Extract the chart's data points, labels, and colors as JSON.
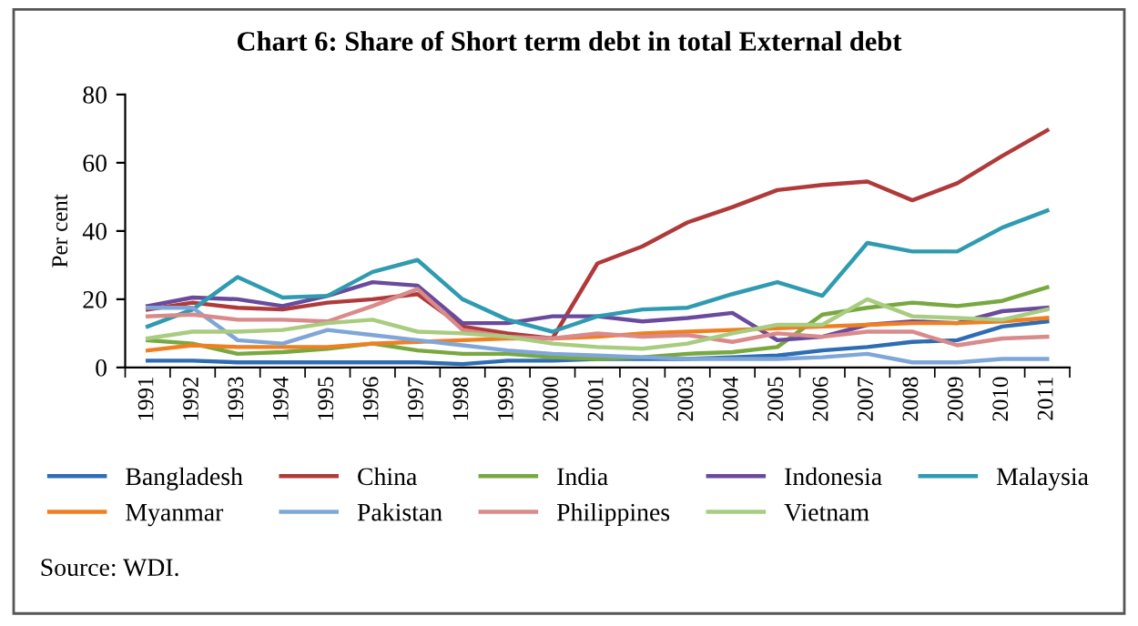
{
  "chart_data": {
    "type": "line",
    "title": "Chart 6: Share of Short term debt in total External debt",
    "ylabel": "Per cent",
    "categories": [
      "1991",
      "1992",
      "1993",
      "1994",
      "1995",
      "1996",
      "1997",
      "1998",
      "1999",
      "2000",
      "2001",
      "2002",
      "2003",
      "2004",
      "2005",
      "2006",
      "2007",
      "2008",
      "2009",
      "2010",
      "2011"
    ],
    "series": [
      {
        "name": "Bangladesh",
        "color": "#2e6db4",
        "values": [
          2,
          2,
          1.5,
          1.5,
          1.5,
          1.5,
          1.5,
          1,
          2,
          2,
          2.5,
          2.5,
          2.5,
          3,
          3.5,
          5,
          6,
          7.5,
          8,
          12,
          13.5
        ]
      },
      {
        "name": "China",
        "color": "#b03a3a",
        "values": [
          17,
          19,
          17.5,
          17,
          19,
          20,
          21.5,
          12,
          10,
          8.5,
          30.5,
          35.5,
          42.5,
          47,
          52,
          53.5,
          54.5,
          49,
          54,
          62,
          69.5
        ]
      },
      {
        "name": "India",
        "color": "#78a840",
        "values": [
          8,
          7,
          4,
          4.5,
          5.5,
          7,
          5,
          4,
          4,
          3,
          2.5,
          3,
          4,
          4.5,
          6,
          15.5,
          17.5,
          19,
          18,
          19.5,
          23.5
        ]
      },
      {
        "name": "Indonesia",
        "color": "#6a4a9c",
        "values": [
          18,
          20.5,
          20,
          18,
          21,
          25,
          24,
          13,
          13,
          15,
          15,
          13.5,
          14.5,
          16,
          8,
          9,
          12.5,
          13.5,
          13,
          16.5,
          17.5
        ]
      },
      {
        "name": "Malaysia",
        "color": "#2e9bb0",
        "values": [
          12,
          17,
          26.5,
          20.5,
          21,
          28,
          31.5,
          20,
          14,
          10.5,
          15,
          17,
          17.5,
          21.5,
          25,
          21,
          36.5,
          34,
          34,
          41,
          46
        ]
      },
      {
        "name": "Myanmar",
        "color": "#f07f22",
        "values": [
          5,
          6.5,
          6,
          6,
          6,
          7,
          7.5,
          8,
          8.5,
          8.5,
          9,
          10,
          10.5,
          11,
          11.5,
          12,
          12.5,
          13,
          13,
          13.5,
          14.5
        ]
      },
      {
        "name": "Pakistan",
        "color": "#7fa6d8",
        "values": [
          17.5,
          17.5,
          8,
          7,
          11,
          9.5,
          8,
          6.5,
          5,
          4,
          3.5,
          3,
          2.5,
          2.5,
          2.5,
          3,
          4,
          1.5,
          1.5,
          2.5,
          2.5
        ]
      },
      {
        "name": "Philippines",
        "color": "#d98a8a",
        "values": [
          15,
          15.5,
          14,
          14,
          13.5,
          18,
          23,
          11,
          9,
          8.5,
          10,
          9,
          9.5,
          7.5,
          10,
          9,
          10.5,
          10.5,
          6.5,
          8.5,
          9
        ]
      },
      {
        "name": "Vietnam",
        "color": "#a8cc80",
        "values": [
          8.5,
          10.5,
          10.5,
          11,
          13,
          14,
          10.5,
          10,
          9,
          7,
          6,
          5.5,
          7,
          10,
          12.5,
          12.5,
          20,
          15,
          14.5,
          14,
          17
        ]
      }
    ],
    "ylim": [
      0,
      80
    ],
    "yticks": [
      0,
      20,
      40,
      60,
      80
    ],
    "grid": false,
    "legend": "bottom",
    "marker": "none",
    "line_style": "solid",
    "annotations": [
      "Source: WDI."
    ]
  }
}
